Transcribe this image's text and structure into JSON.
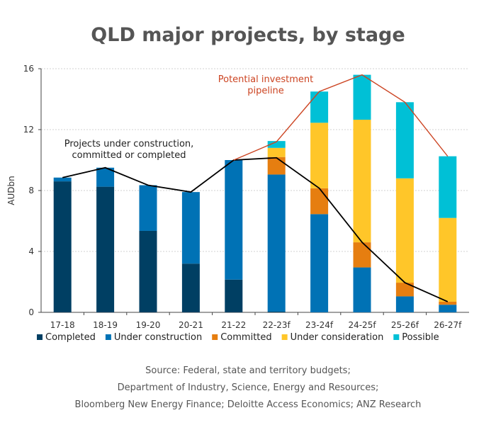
{
  "chart_data": {
    "type": "bar",
    "title": "QLD major projects, by stage",
    "ylabel": "AUDbn",
    "ylim": [
      0,
      16
    ],
    "yticks": [
      0,
      4,
      8,
      12,
      16
    ],
    "grid": true,
    "legend_position": "bottom",
    "categories": [
      "17-18",
      "18-19",
      "19-20",
      "20-21",
      "21-22",
      "22-23f",
      "23-24f",
      "24-25f",
      "25-26f",
      "26-27f"
    ],
    "series": [
      {
        "name": "Completed",
        "color": "#003f63",
        "values": [
          8.6,
          8.25,
          5.35,
          3.2,
          2.15,
          0.05,
          0,
          0,
          0,
          0
        ]
      },
      {
        "name": "Under construction",
        "color": "#0072b5",
        "values": [
          0.25,
          1.25,
          3.0,
          4.7,
          7.85,
          9.0,
          6.45,
          2.95,
          1.05,
          0.5
        ]
      },
      {
        "name": "Committed",
        "color": "#e67e10",
        "values": [
          0,
          0,
          0,
          0,
          0,
          1.15,
          1.7,
          1.65,
          0.9,
          0.2
        ]
      },
      {
        "name": "Under consideration",
        "color": "#ffc629",
        "values": [
          0,
          0,
          0,
          0,
          0,
          0.6,
          4.3,
          8.05,
          6.85,
          5.5
        ]
      },
      {
        "name": "Possible",
        "color": "#00c0d6",
        "values": [
          0,
          0,
          0,
          0,
          0,
          0.45,
          2.05,
          2.95,
          5.0,
          4.05
        ]
      }
    ],
    "lines": [
      {
        "label": "Projects under construction, committed or completed",
        "color": "#000000",
        "values": [
          8.85,
          9.5,
          8.35,
          7.9,
          10.0,
          10.15,
          8.15,
          4.6,
          1.95,
          0.7
        ]
      },
      {
        "label": "Potential investment pipeline",
        "color": "#cc4422",
        "values": [
          null,
          null,
          null,
          null,
          10.0,
          11.2,
          14.5,
          15.6,
          13.8,
          10.25
        ]
      }
    ],
    "annotations": {
      "black_line": [
        "Projects under construction,",
        "committed or completed"
      ],
      "red_line": [
        "Potential investment",
        "pipeline"
      ]
    }
  },
  "source": {
    "lines": [
      "Source: Federal, state and territory budgets;",
      "Department of Industry, Science, Energy and Resources;",
      "Bloomberg New Energy Finance; Deloitte Access Economics; ANZ Research"
    ]
  }
}
